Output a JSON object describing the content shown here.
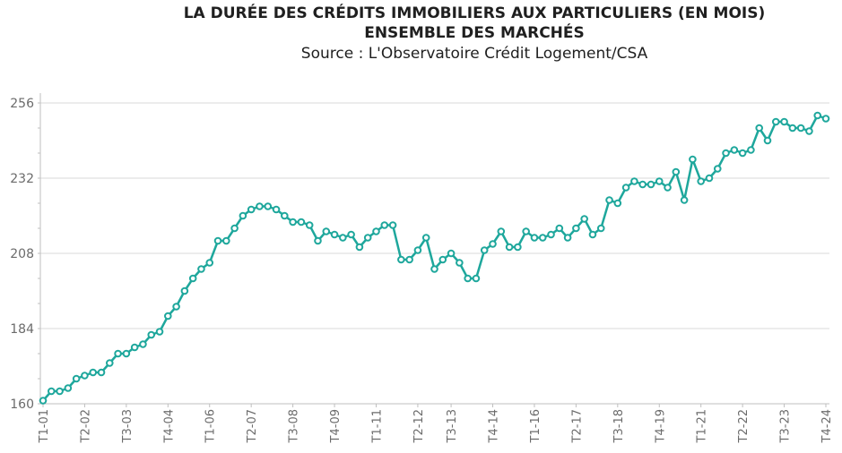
{
  "chart_data": {
    "type": "line",
    "title": "LA DURÉE DES CRÉDITS IMMOBILIERS AUX PARTICULIERS (EN MOIS)",
    "subtitle": "ENSEMBLE DES MARCHÉS",
    "source": "Source : L'Observatoire Crédit Logement/CSA",
    "ylim": [
      160,
      258
    ],
    "yticks": [
      160,
      184,
      208,
      232,
      256
    ],
    "grid": true,
    "legend": "none",
    "colors": {
      "line": "#1ea79c",
      "marker_fill": "#ffffff",
      "grid": "#d9d9d9",
      "axis": "#bfbfbf"
    },
    "x_tick_labels": [
      "T1-01",
      "T2-02",
      "T3-03",
      "T4-04",
      "T1-06",
      "T2-07",
      "T3-08",
      "T4-09",
      "T1-11",
      "T2-12",
      "T3-13",
      "T4-14",
      "T1-16",
      "T2-17",
      "T3-18",
      "T4-19",
      "T1-21",
      "T2-22",
      "T3-23",
      "T4-24"
    ],
    "series": [
      {
        "values": [
          161,
          164,
          164,
          165,
          168,
          169,
          170,
          170,
          173,
          176,
          176,
          178,
          179,
          182,
          183,
          188,
          191,
          196,
          200,
          203,
          205,
          212,
          212,
          216,
          220,
          222,
          223,
          223,
          222,
          220,
          218,
          218,
          217,
          212,
          215,
          214,
          213,
          214,
          210,
          213,
          215,
          217,
          217,
          206,
          206,
          209,
          213,
          203,
          206,
          208,
          205,
          200,
          200,
          209,
          211,
          215,
          210,
          210,
          215,
          213,
          213,
          214,
          216,
          213,
          216,
          219,
          214,
          216,
          225,
          224,
          229,
          231,
          230,
          230,
          231,
          229,
          234,
          225,
          238,
          231,
          232,
          235,
          240,
          241,
          240,
          241,
          248,
          244,
          250,
          250,
          248,
          248,
          247,
          252,
          251
        ]
      }
    ]
  }
}
